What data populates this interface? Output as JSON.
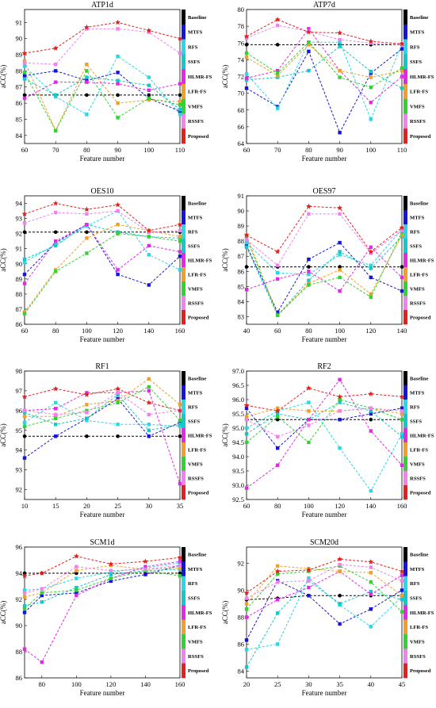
{
  "legend": [
    "Baseline",
    "MTFS",
    "RFS",
    "SSFS",
    "HLMR-FS",
    "LFR-FS",
    "VMFS",
    "RSSFS",
    "Proposed"
  ],
  "colors": {
    "Baseline": "#000000",
    "MTFS": "#1414dc",
    "RFS": "#28d8e6",
    "SSFS": "#14c8c8",
    "HLMR-FS": "#e628e6",
    "LFR-FS": "#f0a028",
    "VMFS": "#32d232",
    "RSSFS": "#f082f0",
    "Proposed": "#e61e1e"
  },
  "chart_data": [
    {
      "type": "line",
      "title": "ATP1d",
      "xlabel": "Feature number",
      "ylabel": "aCC(%)",
      "x": [
        60,
        70,
        80,
        90,
        100,
        110
      ],
      "xlim": [
        60,
        110
      ],
      "ylim": [
        83.5,
        91.8
      ],
      "xticks": [
        60,
        70,
        80,
        90,
        100,
        110
      ],
      "yticks": [
        84,
        85,
        86,
        87,
        88,
        89,
        90,
        91
      ],
      "series": [
        {
          "name": "Baseline",
          "values": [
            86.5,
            86.5,
            86.5,
            86.5,
            86.5,
            86.5
          ]
        },
        {
          "name": "MTFS",
          "values": [
            87.7,
            88.0,
            87.4,
            87.9,
            86.3,
            85.5
          ]
        },
        {
          "name": "RFS",
          "values": [
            88.3,
            86.4,
            85.3,
            88.9,
            87.6,
            85.3
          ]
        },
        {
          "name": "SSFS",
          "values": [
            87.5,
            86.5,
            87.6,
            87.4,
            87.1,
            85.6
          ]
        },
        {
          "name": "HLMR-FS",
          "values": [
            86.3,
            87.3,
            87.3,
            87.2,
            86.8,
            87.2
          ]
        },
        {
          "name": "LFR-FS",
          "values": [
            88.6,
            84.3,
            88.4,
            86.0,
            86.2,
            86.1
          ]
        },
        {
          "name": "VMFS",
          "values": [
            87.9,
            84.3,
            88.0,
            85.1,
            86.3,
            85.9
          ]
        },
        {
          "name": "RSSFS",
          "values": [
            88.5,
            88.4,
            90.6,
            90.6,
            90.4,
            89.1
          ]
        },
        {
          "name": "Proposed",
          "values": [
            89.1,
            89.4,
            90.7,
            91.0,
            90.5,
            90.0
          ]
        }
      ]
    },
    {
      "type": "line",
      "title": "ATP7d",
      "xlabel": "Feature number",
      "ylabel": "aCC(%)",
      "x": [
        60,
        70,
        80,
        90,
        100,
        110
      ],
      "xlim": [
        60,
        110
      ],
      "ylim": [
        64,
        80
      ],
      "xticks": [
        60,
        70,
        80,
        90,
        100,
        110
      ],
      "yticks": [
        64,
        66,
        68,
        70,
        72,
        74,
        76,
        78,
        80
      ],
      "series": [
        {
          "name": "Baseline",
          "values": [
            75.8,
            75.8,
            75.8,
            75.8,
            75.8,
            75.8
          ]
        },
        {
          "name": "MTFS",
          "values": [
            70.6,
            68.4,
            75.0,
            65.3,
            72.4,
            75.3
          ]
        },
        {
          "name": "RFS",
          "values": [
            72.3,
            68.2,
            76.1,
            76.1,
            66.9,
            75.9
          ]
        },
        {
          "name": "SSFS",
          "values": [
            71.6,
            71.9,
            72.7,
            75.6,
            72.6,
            70.6
          ]
        },
        {
          "name": "HLMR-FS",
          "values": [
            71.8,
            72.7,
            77.7,
            72.7,
            68.9,
            72.0
          ]
        },
        {
          "name": "LFR-FS",
          "values": [
            74.3,
            72.1,
            75.8,
            72.7,
            71.9,
            72.7
          ]
        },
        {
          "name": "VMFS",
          "values": [
            74.8,
            72.4,
            76.1,
            71.9,
            70.7,
            73.0
          ]
        },
        {
          "name": "RSSFS",
          "values": [
            76.6,
            78.1,
            77.4,
            76.4,
            76.0,
            75.8
          ]
        },
        {
          "name": "Proposed",
          "values": [
            76.8,
            78.8,
            77.3,
            77.2,
            76.2,
            75.9
          ]
        }
      ]
    },
    {
      "type": "line",
      "title": "OES10",
      "xlabel": "Feature number",
      "ylabel": "aCC(%)",
      "x": [
        60,
        80,
        100,
        120,
        140,
        160
      ],
      "xlim": [
        60,
        160
      ],
      "ylim": [
        86,
        94.5
      ],
      "xticks": [
        60,
        80,
        100,
        120,
        140,
        160
      ],
      "yticks": [
        86,
        87,
        88,
        89,
        90,
        91,
        92,
        93,
        94
      ],
      "series": [
        {
          "name": "Baseline",
          "values": [
            92.1,
            92.1,
            92.1,
            92.1,
            92.1,
            92.1
          ]
        },
        {
          "name": "MTFS",
          "values": [
            89.3,
            91.4,
            92.6,
            89.3,
            88.6,
            90.5
          ]
        },
        {
          "name": "RFS",
          "values": [
            90.1,
            91.3,
            92.5,
            93.5,
            90.6,
            89.6
          ]
        },
        {
          "name": "SSFS",
          "values": [
            90.3,
            91.2,
            92.6,
            92.1,
            91.8,
            91.7
          ]
        },
        {
          "name": "HLMR-FS",
          "values": [
            88.7,
            91.5,
            92.6,
            89.6,
            91.2,
            90.8
          ]
        },
        {
          "name": "LFR-FS",
          "values": [
            86.8,
            89.6,
            91.7,
            92.6,
            92.2,
            91.8
          ]
        },
        {
          "name": "VMFS",
          "values": [
            86.7,
            89.5,
            90.7,
            92.0,
            91.8,
            91.5
          ]
        },
        {
          "name": "RSSFS",
          "values": [
            92.7,
            93.4,
            93.3,
            93.5,
            92.1,
            92.2
          ]
        },
        {
          "name": "Proposed",
          "values": [
            93.3,
            94.0,
            93.6,
            93.9,
            92.2,
            92.6
          ]
        }
      ]
    },
    {
      "type": "line",
      "title": "OES97",
      "xlabel": "Feature number",
      "ylabel": "aCC(%)",
      "x": [
        40,
        60,
        80,
        100,
        120,
        140
      ],
      "xlim": [
        40,
        140
      ],
      "ylim": [
        82.5,
        91
      ],
      "xticks": [
        40,
        60,
        80,
        100,
        120,
        140
      ],
      "yticks": [
        83,
        84,
        85,
        86,
        87,
        88,
        89,
        90,
        91
      ],
      "series": [
        {
          "name": "Baseline",
          "values": [
            86.3,
            86.3,
            86.3,
            86.3,
            86.3,
            86.3
          ]
        },
        {
          "name": "MTFS",
          "values": [
            87.7,
            83.3,
            86.8,
            87.9,
            85.6,
            84.7
          ]
        },
        {
          "name": "RFS",
          "values": [
            87.9,
            85.9,
            85.8,
            87.1,
            86.4,
            88.8
          ]
        },
        {
          "name": "SSFS",
          "values": [
            87.6,
            83.1,
            85.4,
            87.3,
            86.2,
            88.3
          ]
        },
        {
          "name": "HLMR-FS",
          "values": [
            84.8,
            85.5,
            86.0,
            84.7,
            87.6,
            85.6
          ]
        },
        {
          "name": "LFR-FS",
          "values": [
            88.4,
            83.1,
            85.2,
            86.1,
            84.5,
            88.4
          ]
        },
        {
          "name": "VMFS",
          "values": [
            88.2,
            83.1,
            85.1,
            85.6,
            84.3,
            88.6
          ]
        },
        {
          "name": "RSSFS",
          "values": [
            88.1,
            86.4,
            89.8,
            89.8,
            87.2,
            88.7
          ]
        },
        {
          "name": "Proposed",
          "values": [
            88.4,
            87.3,
            90.3,
            90.2,
            87.3,
            88.9
          ]
        }
      ]
    },
    {
      "type": "line",
      "title": "RF1",
      "xlabel": "Feature number",
      "ylabel": "aCC(%)",
      "x": [
        10,
        15,
        20,
        25,
        30,
        35
      ],
      "xlim": [
        10,
        35
      ],
      "ylim": [
        91.5,
        98
      ],
      "xticks": [
        10,
        15,
        20,
        25,
        30,
        35
      ],
      "yticks": [
        92,
        93,
        94,
        95,
        96,
        97,
        98
      ],
      "series": [
        {
          "name": "Baseline",
          "values": [
            94.7,
            94.7,
            94.7,
            94.7,
            94.7,
            94.7
          ]
        },
        {
          "name": "MTFS",
          "values": [
            93.6,
            94.7,
            95.6,
            96.6,
            94.7,
            95.4
          ]
        },
        {
          "name": "RFS",
          "values": [
            95.4,
            96.4,
            95.5,
            95.3,
            95.3,
            95.2
          ]
        },
        {
          "name": "SSFS",
          "values": [
            95.9,
            95.3,
            95.6,
            96.8,
            95.0,
            95.3
          ]
        },
        {
          "name": "HLMR-FS",
          "values": [
            96.0,
            96.1,
            96.9,
            96.9,
            97.0,
            92.3
          ]
        },
        {
          "name": "LFR-FS",
          "values": [
            95.7,
            95.7,
            96.3,
            96.5,
            97.6,
            96.3
          ]
        },
        {
          "name": "VMFS",
          "values": [
            95.2,
            95.6,
            96.0,
            96.4,
            97.2,
            95.5
          ]
        },
        {
          "name": "RSSFS",
          "values": [
            96.0,
            95.8,
            95.9,
            96.9,
            95.8,
            96.0
          ]
        },
        {
          "name": "Proposed",
          "values": [
            96.7,
            97.1,
            96.8,
            97.1,
            96.4,
            96.0
          ]
        }
      ]
    },
    {
      "type": "line",
      "title": "RF2",
      "xlabel": "Feature number",
      "ylabel": "aCC(%)",
      "x": [
        60,
        80,
        100,
        120,
        140,
        160
      ],
      "xlim": [
        60,
        160
      ],
      "ylim": [
        92.5,
        97
      ],
      "xticks": [
        60,
        80,
        100,
        120,
        140,
        160
      ],
      "yticks": [
        92.5,
        93.0,
        93.5,
        94.0,
        94.5,
        95.0,
        95.5,
        96.0,
        96.5,
        97.0
      ],
      "series": [
        {
          "name": "Baseline",
          "values": [
            95.3,
            95.3,
            95.3,
            95.3,
            95.3,
            95.3
          ]
        },
        {
          "name": "MTFS",
          "values": [
            95.7,
            94.3,
            95.3,
            95.3,
            95.5,
            95.7
          ]
        },
        {
          "name": "RFS",
          "values": [
            95.0,
            95.6,
            95.9,
            94.3,
            92.8,
            94.8
          ]
        },
        {
          "name": "SSFS",
          "values": [
            94.8,
            95.5,
            95.3,
            95.9,
            95.6,
            94.7
          ]
        },
        {
          "name": "HLMR-FS",
          "values": [
            92.9,
            93.7,
            95.3,
            96.7,
            94.9,
            93.7
          ]
        },
        {
          "name": "LFR-FS",
          "values": [
            95.4,
            95.7,
            95.6,
            95.6,
            95.7,
            95.5
          ]
        },
        {
          "name": "VMFS",
          "values": [
            94.5,
            95.4,
            94.5,
            96.0,
            95.7,
            95.3
          ]
        },
        {
          "name": "RSSFS",
          "values": [
            95.3,
            94.7,
            95.1,
            95.6,
            95.7,
            95.6
          ]
        },
        {
          "name": "Proposed",
          "values": [
            95.8,
            95.6,
            96.4,
            96.1,
            96.2,
            96.1
          ]
        }
      ]
    },
    {
      "type": "line",
      "title": "SCM1d",
      "xlabel": "Feature number",
      "ylabel": "aCC(%)",
      "x": [
        70,
        80,
        100,
        120,
        140,
        160
      ],
      "xlim": [
        70,
        160
      ],
      "ylim": [
        86,
        96
      ],
      "xticks": [
        80,
        100,
        120,
        140,
        160
      ],
      "yticks": [
        86,
        88,
        90,
        92,
        94,
        96
      ],
      "series": [
        {
          "name": "Baseline",
          "values": [
            94.0,
            94.0,
            94.0,
            94.0,
            94.0,
            94.0
          ]
        },
        {
          "name": "MTFS",
          "values": [
            91.0,
            92.3,
            92.5,
            93.4,
            93.9,
            94.6
          ]
        },
        {
          "name": "RFS",
          "values": [
            92.7,
            92.8,
            93.6,
            94.1,
            94.4,
            94.8
          ]
        },
        {
          "name": "SSFS",
          "values": [
            91.5,
            91.8,
            92.9,
            93.9,
            94.2,
            94.3
          ]
        },
        {
          "name": "HLMR-FS",
          "values": [
            88.2,
            87.2,
            92.3,
            93.6,
            94.5,
            94.9
          ]
        },
        {
          "name": "LFR-FS",
          "values": [
            92.2,
            92.5,
            94.2,
            94.6,
            94.3,
            94.4
          ]
        },
        {
          "name": "VMFS",
          "values": [
            91.3,
            92.5,
            92.7,
            93.6,
            94.2,
            93.8
          ]
        },
        {
          "name": "RSSFS",
          "values": [
            92.5,
            92.8,
            94.5,
            94.2,
            94.3,
            94.6
          ]
        },
        {
          "name": "Proposed",
          "values": [
            93.8,
            94.0,
            95.3,
            94.7,
            94.9,
            95.2
          ]
        }
      ]
    },
    {
      "type": "line",
      "title": "SCM20d",
      "xlabel": "Feature number",
      "ylabel": "aCC(%)",
      "x": [
        20,
        25,
        30,
        35,
        40,
        45
      ],
      "xlim": [
        20,
        45
      ],
      "ylim": [
        83.5,
        93.2
      ],
      "xticks": [
        20,
        25,
        30,
        35,
        40,
        45
      ],
      "yticks": [
        84,
        86,
        88,
        90,
        92
      ],
      "series": [
        {
          "name": "Baseline",
          "values": [
            89.3,
            89.4,
            89.6,
            89.6,
            89.6,
            89.6
          ]
        },
        {
          "name": "MTFS",
          "values": [
            86.3,
            90.7,
            89.6,
            87.5,
            88.6,
            90.0
          ]
        },
        {
          "name": "RFS",
          "values": [
            85.6,
            86.0,
            90.9,
            88.9,
            87.3,
            89.5
          ]
        },
        {
          "name": "SSFS",
          "values": [
            84.3,
            88.3,
            90.7,
            89.0,
            89.9,
            89.3
          ]
        },
        {
          "name": "HLMR-FS",
          "values": [
            88.0,
            89.3,
            90.2,
            91.4,
            89.7,
            91.1
          ]
        },
        {
          "name": "LFR-FS",
          "values": [
            89.0,
            91.8,
            91.6,
            91.4,
            91.3,
            89.6
          ]
        },
        {
          "name": "VMFS",
          "values": [
            88.6,
            91.2,
            91.4,
            91.8,
            90.6,
            88.4
          ]
        },
        {
          "name": "RSSFS",
          "values": [
            89.4,
            90.6,
            90.7,
            91.9,
            91.7,
            90.7
          ]
        },
        {
          "name": "Proposed",
          "values": [
            89.8,
            91.4,
            91.5,
            92.3,
            92.1,
            91.4
          ]
        }
      ]
    }
  ]
}
